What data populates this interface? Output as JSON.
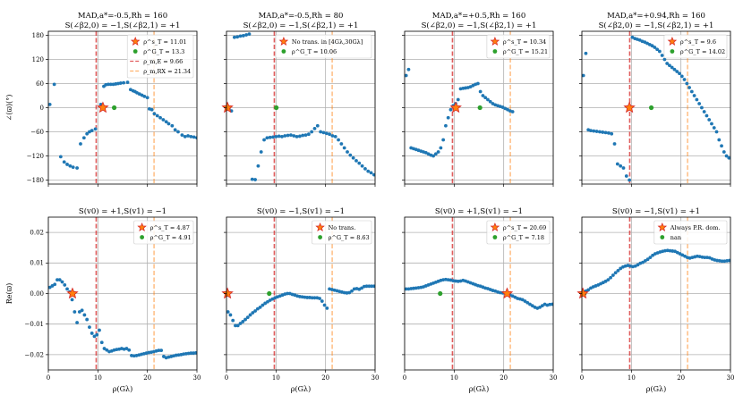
{
  "colors": {
    "points": "#1f77b4",
    "star_fill": "#ff7f0e",
    "star_edge": "#d62728",
    "green": "#2ca02c",
    "red_line": "#d62728",
    "orange_line": "#ff7f0e",
    "grid": "#b0b0b0"
  },
  "shared": {
    "rho_min_line": 9.66,
    "rho_max_line": 21.34,
    "xlabel": "ρ(Gλ)",
    "xlim": [
      0,
      30
    ],
    "xticks": [
      0,
      10,
      20,
      30
    ]
  },
  "chart_data": [
    {
      "type": "scatter",
      "row": 0,
      "col": 0,
      "title_lines": [
        "MAD,a*=-0.5,Rh = 160",
        "S(∠β2,0) = −1,S(∠β2,1) = +1"
      ],
      "ylabel": "∠(ϖ)(°)",
      "ylim": [
        -190,
        190
      ],
      "yticks": [
        -180,
        -120,
        -60,
        0,
        60,
        120,
        180
      ],
      "x": [
        0.3,
        1.2,
        2.5,
        3.2,
        3.8,
        4.4,
        5.0,
        5.8,
        6.5,
        7.2,
        7.8,
        8.3,
        8.8,
        9.5,
        10.6,
        11.2,
        11.6,
        12.1,
        12.6,
        13.1,
        13.6,
        14.1,
        14.6,
        15.2,
        16.0,
        16.6,
        17.1,
        17.5,
        17.9,
        18.4,
        18.9,
        19.4,
        20.0,
        20.4,
        20.9,
        21.4,
        22.0,
        22.6,
        23.2,
        23.8,
        24.3,
        25.0,
        25.6,
        26.2,
        27.0,
        27.6,
        28.2,
        28.8,
        29.4,
        30.0
      ],
      "y": [
        8,
        58,
        -122,
        -135,
        -141,
        -145,
        -148,
        -150,
        -90,
        -75,
        -65,
        -60,
        -57,
        -53,
        8,
        53,
        57,
        58,
        58,
        58,
        59,
        60,
        61,
        62,
        63,
        45,
        42,
        40,
        37,
        34,
        31,
        28,
        25,
        -3,
        -5,
        -15,
        -20,
        -25,
        -30,
        -35,
        -40,
        -45,
        -55,
        -60,
        -68,
        -72,
        -70,
        -72,
        -73,
        -75
      ],
      "star": {
        "x": 11.01,
        "y": 0
      },
      "green": {
        "x": 13.3,
        "y": 0
      },
      "legend": {
        "position": "upper-right",
        "entries": [
          "ρ^s_T = 11.01",
          "ρ^G_T = 13.3",
          "ρ_m,E = 9.66",
          "ρ_m,RX = 21.34"
        ]
      }
    },
    {
      "type": "scatter",
      "row": 0,
      "col": 1,
      "title_lines": [
        "MAD,a*=-0.5,Rh = 80",
        "S(∠β2,0) = −1,S(∠β2,1) = +1"
      ],
      "ylabel": "",
      "ylim": [
        -190,
        190
      ],
      "yticks": [
        -180,
        -120,
        -60,
        0,
        60,
        120,
        180
      ],
      "x": [
        0.5,
        1.0,
        1.6,
        2.2,
        2.8,
        3.4,
        4.0,
        4.6,
        5.2,
        5.8,
        6.4,
        7.0,
        7.6,
        8.2,
        8.8,
        9.4,
        10.0,
        10.6,
        11.2,
        11.8,
        12.4,
        13.0,
        13.6,
        14.2,
        14.8,
        15.4,
        16.0,
        16.6,
        17.2,
        17.8,
        18.4,
        19.0,
        19.6,
        20.2,
        20.8,
        21.4,
        22.0,
        22.6,
        23.2,
        23.8,
        24.4,
        25.0,
        25.6,
        26.2,
        26.8,
        27.4,
        28.0,
        28.6,
        29.2,
        29.8
      ],
      "y": [
        -3,
        -8,
        175,
        176,
        178,
        179,
        181,
        183,
        -178,
        -179,
        -145,
        -110,
        -80,
        -75,
        -74,
        -73,
        -72,
        -71,
        -72,
        -70,
        -69,
        -68,
        -70,
        -72,
        -71,
        -69,
        -68,
        -66,
        -60,
        -52,
        -45,
        -60,
        -62,
        -64,
        -66,
        -70,
        -72,
        -80,
        -90,
        -100,
        -110,
        -118,
        -125,
        -132,
        -138,
        -145,
        -152,
        -158,
        -162,
        -167
      ],
      "star": {
        "x": 0.2,
        "y": 0
      },
      "green": {
        "x": 10.06,
        "y": 0
      },
      "legend": {
        "position": "upper-right",
        "entries": [
          "No trans. in [4Gλ,30Gλ]",
          "ρ^G_T = 10.06"
        ]
      }
    },
    {
      "type": "scatter",
      "row": 0,
      "col": 2,
      "title_lines": [
        "MAD,a*=+0.5,Rh = 160",
        "S(∠β2,0) = −1,S(∠β2,1) = +1"
      ],
      "ylabel": "",
      "ylim": [
        -190,
        190
      ],
      "yticks": [
        -180,
        -120,
        -60,
        0,
        60,
        120,
        180
      ],
      "x": [
        0.3,
        0.8,
        1.3,
        1.8,
        2.3,
        2.8,
        3.3,
        3.8,
        4.3,
        4.8,
        5.3,
        5.8,
        6.3,
        6.8,
        7.3,
        7.8,
        8.3,
        8.8,
        9.3,
        9.8,
        10.3,
        10.8,
        11.3,
        11.8,
        12.3,
        12.8,
        13.3,
        13.8,
        14.3,
        14.8,
        15.3,
        15.8,
        16.3,
        16.8,
        17.3,
        17.8,
        18.3,
        18.8,
        19.3,
        19.8,
        20.3,
        20.8,
        21.3,
        21.8
      ],
      "y": [
        80,
        95,
        -100,
        -102,
        -104,
        -106,
        -108,
        -110,
        -112,
        -115,
        -118,
        -120,
        -115,
        -110,
        -100,
        -80,
        -45,
        -25,
        -5,
        5,
        10,
        20,
        47,
        48,
        49,
        50,
        52,
        55,
        58,
        60,
        40,
        30,
        25,
        20,
        15,
        10,
        7,
        5,
        3,
        1,
        -2,
        -5,
        -8,
        -10
      ],
      "star": {
        "x": 10.34,
        "y": 0
      },
      "green": {
        "x": 15.21,
        "y": 0
      },
      "legend": {
        "position": "upper-right",
        "entries": [
          "ρ^s_T = 10.34",
          "ρ^G_T = 15.21"
        ]
      }
    },
    {
      "type": "scatter",
      "row": 0,
      "col": 3,
      "title_lines": [
        "MAD,a*=+0.94,Rh = 160",
        "S(∠β2,0) = −1,S(∠β2,1) = +1"
      ],
      "ylabel": "",
      "ylim": [
        -190,
        190
      ],
      "yticks": [
        -180,
        -120,
        -60,
        0,
        60,
        120,
        180
      ],
      "x": [
        0.3,
        0.8,
        1.3,
        1.8,
        2.4,
        3.0,
        3.6,
        4.2,
        4.8,
        5.4,
        6.0,
        6.6,
        7.2,
        7.8,
        8.4,
        9.0,
        9.6,
        10.2,
        10.7,
        11.2,
        11.7,
        12.2,
        12.7,
        13.2,
        13.7,
        14.2,
        14.7,
        15.2,
        15.7,
        16.2,
        16.7,
        17.2,
        17.7,
        18.2,
        18.7,
        19.2,
        19.7,
        20.2,
        20.7,
        21.2,
        21.7,
        22.2,
        22.7,
        23.2,
        23.7,
        24.2,
        24.7,
        25.2,
        25.7,
        26.2,
        26.7,
        27.2,
        27.7,
        28.2,
        28.7,
        29.2,
        29.7
      ],
      "y": [
        80,
        135,
        -55,
        -57,
        -58,
        -59,
        -60,
        -61,
        -62,
        -63,
        -65,
        -90,
        -140,
        -145,
        -150,
        -170,
        -180,
        175,
        172,
        170,
        168,
        165,
        163,
        160,
        157,
        154,
        150,
        145,
        140,
        130,
        120,
        110,
        105,
        100,
        95,
        90,
        85,
        78,
        70,
        60,
        50,
        40,
        30,
        20,
        10,
        0,
        -10,
        -20,
        -30,
        -40,
        -50,
        -60,
        -80,
        -95,
        -110,
        -120,
        -125
      ],
      "star": {
        "x": 9.6,
        "y": 0
      },
      "green": {
        "x": 14.02,
        "y": 0
      },
      "legend": {
        "position": "upper-right",
        "entries": [
          "ρ^s_T = 9.6",
          "ρ^G_T = 14.02"
        ]
      }
    },
    {
      "type": "scatter",
      "row": 1,
      "col": 0,
      "title_lines": [
        "S(v0) = +1,S(v1) = −1"
      ],
      "ylabel": "Re(ϖ)",
      "ylim": [
        -0.025,
        0.025
      ],
      "yticks": [
        -0.02,
        -0.01,
        0.0,
        0.01,
        0.02
      ],
      "x": [
        0.3,
        0.8,
        1.3,
        1.8,
        2.3,
        2.8,
        3.3,
        3.8,
        4.3,
        4.8,
        5.3,
        5.8,
        6.3,
        6.8,
        7.3,
        7.8,
        8.3,
        8.8,
        9.3,
        9.8,
        10.3,
        10.8,
        11.3,
        11.8,
        12.3,
        12.8,
        13.3,
        13.8,
        14.3,
        14.8,
        15.3,
        15.8,
        16.3,
        16.8,
        17.3,
        17.8,
        18.3,
        18.8,
        19.3,
        19.8,
        20.3,
        20.8,
        21.3,
        21.8,
        22.3,
        22.8,
        23.3,
        23.8,
        24.3,
        24.8,
        25.3,
        25.8,
        26.3,
        26.8,
        27.3,
        27.8,
        28.3,
        28.8,
        29.3,
        29.8
      ],
      "y": [
        0.002,
        0.0025,
        0.003,
        0.0045,
        0.0045,
        0.0038,
        0.0028,
        0.0015,
        0.0005,
        -0.002,
        -0.006,
        -0.0095,
        -0.006,
        -0.0055,
        -0.007,
        -0.0085,
        -0.011,
        -0.013,
        -0.014,
        -0.0135,
        -0.012,
        -0.016,
        -0.018,
        -0.0185,
        -0.019,
        -0.0188,
        -0.0185,
        -0.0183,
        -0.0182,
        -0.018,
        -0.0182,
        -0.018,
        -0.0185,
        -0.0203,
        -0.0204,
        -0.0203,
        -0.0201,
        -0.0199,
        -0.0197,
        -0.0195,
        -0.0193,
        -0.0192,
        -0.019,
        -0.0188,
        -0.0186,
        -0.0186,
        -0.0206,
        -0.021,
        -0.0208,
        -0.0206,
        -0.0204,
        -0.0202,
        -0.0201,
        -0.02,
        -0.0198,
        -0.0197,
        -0.0196,
        -0.0195,
        -0.0195,
        -0.0194
      ],
      "star": {
        "x": 4.87,
        "y": 0
      },
      "green": {
        "x": 4.91,
        "y": 0
      },
      "legend": {
        "position": "upper-right",
        "entries": [
          "ρ^s_T = 4.87",
          "ρ^G_T = 4.91"
        ]
      }
    },
    {
      "type": "scatter",
      "row": 1,
      "col": 1,
      "title_lines": [
        "S(v0) = −1,S(v1) = −1"
      ],
      "ylabel": "",
      "ylim": [
        -0.025,
        0.025
      ],
      "yticks": [
        -0.02,
        -0.01,
        0.0,
        0.01,
        0.02
      ],
      "x": [
        0.3,
        0.8,
        1.3,
        1.8,
        2.3,
        2.8,
        3.3,
        3.8,
        4.3,
        4.8,
        5.3,
        5.8,
        6.3,
        6.8,
        7.3,
        7.8,
        8.3,
        8.8,
        9.3,
        9.8,
        10.3,
        10.8,
        11.3,
        11.8,
        12.3,
        12.8,
        13.3,
        13.8,
        14.3,
        14.8,
        15.3,
        15.8,
        16.3,
        16.8,
        17.3,
        17.8,
        18.3,
        18.8,
        19.3,
        19.8,
        20.3,
        20.8,
        21.3,
        21.8,
        22.3,
        22.8,
        23.3,
        23.8,
        24.3,
        24.8,
        25.3,
        25.8,
        26.3,
        26.8,
        27.3,
        27.8,
        28.3,
        28.8,
        29.3,
        29.8
      ],
      "y": [
        -0.006,
        -0.007,
        -0.0088,
        -0.0105,
        -0.0105,
        -0.0098,
        -0.0092,
        -0.0085,
        -0.0078,
        -0.007,
        -0.0063,
        -0.0057,
        -0.005,
        -0.0045,
        -0.0038,
        -0.0032,
        -0.0027,
        -0.0022,
        -0.0018,
        -0.0014,
        -0.0011,
        -0.0008,
        -0.0005,
        -0.0002,
        0.0,
        0.0,
        -0.0003,
        -0.0005,
        -0.0008,
        -0.001,
        -0.0011,
        -0.0012,
        -0.0013,
        -0.0013,
        -0.0014,
        -0.0014,
        -0.0014,
        -0.0016,
        -0.0025,
        -0.0038,
        -0.0048,
        0.0015,
        0.0013,
        0.0011,
        0.0009,
        0.0007,
        0.0005,
        0.0003,
        0.0002,
        0.0003,
        0.0008,
        0.0015,
        0.0016,
        0.0014,
        0.0018,
        0.0023,
        0.0024,
        0.0024,
        0.0024,
        0.0024
      ],
      "star": {
        "x": 0.2,
        "y": 0
      },
      "green": {
        "x": 8.63,
        "y": 0
      },
      "legend": {
        "position": "upper-right",
        "entries": [
          "No trans.",
          "ρ^G_T = 8.63"
        ]
      }
    },
    {
      "type": "scatter",
      "row": 1,
      "col": 2,
      "title_lines": [
        "S(v0) = +1,S(v1) = −1"
      ],
      "ylabel": "",
      "ylim": [
        -0.025,
        0.025
      ],
      "yticks": [
        -0.02,
        -0.01,
        0.0,
        0.01,
        0.02
      ],
      "x": [
        0.3,
        0.8,
        1.3,
        1.8,
        2.3,
        2.8,
        3.3,
        3.8,
        4.3,
        4.8,
        5.3,
        5.8,
        6.3,
        6.8,
        7.3,
        7.8,
        8.3,
        8.8,
        9.3,
        9.8,
        10.3,
        10.8,
        11.3,
        11.8,
        12.3,
        12.8,
        13.3,
        13.8,
        14.3,
        14.8,
        15.3,
        15.8,
        16.3,
        16.8,
        17.3,
        17.8,
        18.3,
        18.8,
        19.3,
        19.8,
        20.3,
        20.8,
        21.3,
        21.8,
        22.3,
        22.8,
        23.3,
        23.8,
        24.3,
        24.8,
        25.3,
        25.8,
        26.3,
        26.8,
        27.3,
        27.8,
        28.3,
        28.8,
        29.3,
        29.8
      ],
      "y": [
        0.0015,
        0.0015,
        0.0016,
        0.0017,
        0.0018,
        0.0019,
        0.002,
        0.0022,
        0.0025,
        0.0028,
        0.0031,
        0.0034,
        0.0037,
        0.004,
        0.0043,
        0.0045,
        0.0046,
        0.0045,
        0.0044,
        0.0042,
        0.0041,
        0.004,
        0.0041,
        0.0043,
        0.0041,
        0.0038,
        0.0035,
        0.0032,
        0.0029,
        0.0026,
        0.0024,
        0.0021,
        0.0018,
        0.0016,
        0.0013,
        0.001,
        0.0008,
        0.0005,
        0.0003,
        0.0002,
        0.0001,
        0.0,
        -0.0005,
        -0.0008,
        -0.0012,
        -0.0016,
        -0.0018,
        -0.002,
        -0.0025,
        -0.003,
        -0.0035,
        -0.004,
        -0.0045,
        -0.0048,
        -0.0045,
        -0.004,
        -0.0035,
        -0.0038,
        -0.0036,
        -0.0035
      ],
      "star": {
        "x": 20.69,
        "y": 0
      },
      "green": {
        "x": 7.18,
        "y": 0
      },
      "legend": {
        "position": "upper-right",
        "entries": [
          "ρ^s_T = 20.69",
          "ρ^G_T = 7.18"
        ]
      }
    },
    {
      "type": "scatter",
      "row": 1,
      "col": 3,
      "title_lines": [
        "S(v0) = −1,S(v1) = +1"
      ],
      "ylabel": "",
      "ylim": [
        -0.025,
        0.025
      ],
      "yticks": [
        -0.02,
        -0.01,
        0.0,
        0.01,
        0.02
      ],
      "x": [
        0.3,
        0.8,
        1.3,
        1.8,
        2.3,
        2.8,
        3.3,
        3.8,
        4.3,
        4.8,
        5.3,
        5.8,
        6.3,
        6.8,
        7.3,
        7.8,
        8.3,
        8.8,
        9.3,
        9.8,
        10.3,
        10.8,
        11.3,
        11.8,
        12.3,
        12.8,
        13.3,
        13.8,
        14.3,
        14.8,
        15.3,
        15.8,
        16.3,
        16.8,
        17.3,
        17.8,
        18.3,
        18.8,
        19.3,
        19.8,
        20.3,
        20.8,
        21.3,
        21.8,
        22.3,
        22.8,
        23.3,
        23.8,
        24.3,
        24.8,
        25.3,
        25.8,
        26.3,
        26.8,
        27.3,
        27.8,
        28.3,
        28.8,
        29.3,
        29.8
      ],
      "y": [
        0.0002,
        0.0008,
        0.0012,
        0.0018,
        0.0022,
        0.0025,
        0.0028,
        0.0032,
        0.0036,
        0.004,
        0.0045,
        0.0052,
        0.006,
        0.0068,
        0.0075,
        0.0082,
        0.0087,
        0.009,
        0.0092,
        0.009,
        0.0088,
        0.009,
        0.0094,
        0.0099,
        0.0102,
        0.0107,
        0.0112,
        0.0118,
        0.0125,
        0.013,
        0.0133,
        0.0136,
        0.0138,
        0.014,
        0.0141,
        0.014,
        0.0139,
        0.0138,
        0.0134,
        0.013,
        0.0126,
        0.0122,
        0.0118,
        0.0116,
        0.0118,
        0.012,
        0.0122,
        0.0121,
        0.0119,
        0.0118,
        0.0118,
        0.0117,
        0.0113,
        0.011,
        0.0108,
        0.0107,
        0.0106,
        0.0106,
        0.0107,
        0.0108
      ],
      "star": {
        "x": 0.2,
        "y": 0
      },
      "green": {
        "x": 0.5,
        "y": 0
      },
      "legend": {
        "position": "upper-right",
        "entries": [
          "Always P.R. dom.",
          "nan"
        ]
      }
    }
  ]
}
